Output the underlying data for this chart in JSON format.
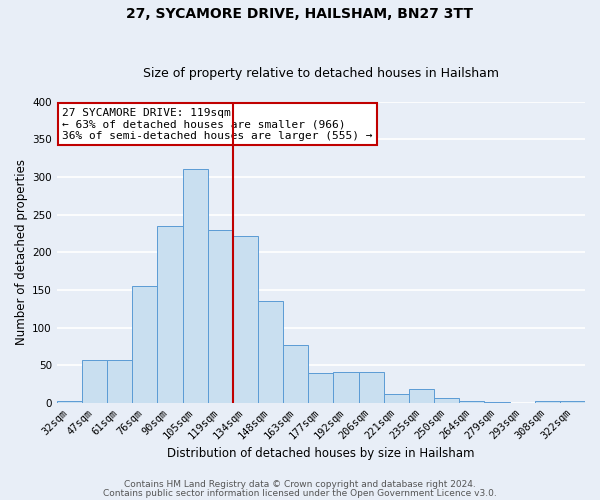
{
  "title": "27, SYCAMORE DRIVE, HAILSHAM, BN27 3TT",
  "subtitle": "Size of property relative to detached houses in Hailsham",
  "xlabel": "Distribution of detached houses by size in Hailsham",
  "ylabel": "Number of detached properties",
  "bin_labels": [
    "32sqm",
    "47sqm",
    "61sqm",
    "76sqm",
    "90sqm",
    "105sqm",
    "119sqm",
    "134sqm",
    "148sqm",
    "163sqm",
    "177sqm",
    "192sqm",
    "206sqm",
    "221sqm",
    "235sqm",
    "250sqm",
    "264sqm",
    "279sqm",
    "293sqm",
    "308sqm",
    "322sqm"
  ],
  "bar_heights": [
    3,
    57,
    57,
    155,
    235,
    311,
    230,
    222,
    135,
    77,
    40,
    41,
    41,
    12,
    19,
    7,
    3,
    1,
    0,
    3,
    3
  ],
  "bar_color": "#c9dff0",
  "bar_edge_color": "#5b9bd5",
  "vline_x": 6.5,
  "vline_color": "#c00000",
  "ylim": [
    0,
    400
  ],
  "yticks": [
    0,
    50,
    100,
    150,
    200,
    250,
    300,
    350,
    400
  ],
  "annotation_title": "27 SYCAMORE DRIVE: 119sqm",
  "annotation_line1": "← 63% of detached houses are smaller (966)",
  "annotation_line2": "36% of semi-detached houses are larger (555) →",
  "annotation_box_facecolor": "#ffffff",
  "annotation_box_edgecolor": "#c00000",
  "footer1": "Contains HM Land Registry data © Crown copyright and database right 2024.",
  "footer2": "Contains public sector information licensed under the Open Government Licence v3.0.",
  "bg_color": "#e8eef7",
  "grid_color": "#ffffff",
  "title_fontsize": 10,
  "subtitle_fontsize": 9,
  "axis_label_fontsize": 8.5,
  "tick_fontsize": 7.5,
  "annotation_fontsize": 8,
  "footer_fontsize": 6.5
}
